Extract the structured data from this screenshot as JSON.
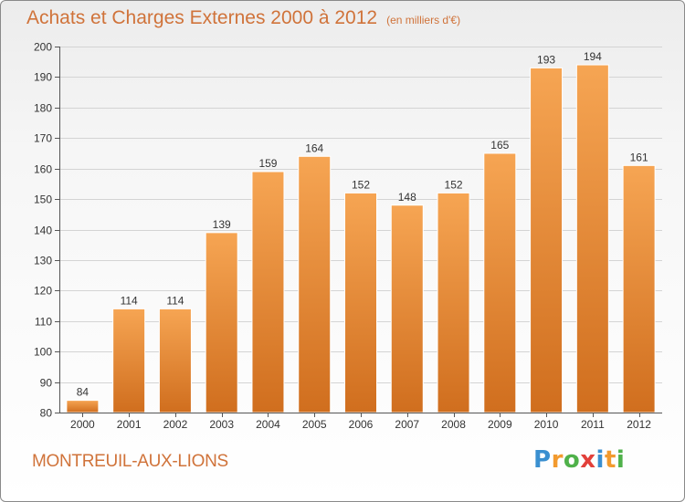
{
  "header": {
    "title": "Achats et Charges Externes 2000 à 2012",
    "unit": "(en milliers d'€)"
  },
  "footer": {
    "commune": "MONTREUIL-AUX-LIONS",
    "logo_letters": [
      "P",
      "r",
      "o",
      "x",
      "i",
      "t",
      "i"
    ]
  },
  "colors": {
    "accent": "#d0733a",
    "bar_light": "#f6a553",
    "bar_dark": "#d06e1e",
    "logo": [
      "#3a8fd0",
      "#f29a2e",
      "#4fb14a",
      "#e2403a",
      "#3a8fd0",
      "#f29a2e",
      "#4fb14a"
    ]
  },
  "chart_data": {
    "type": "bar",
    "title": "Achats et Charges Externes 2000 à 2012",
    "subtitle": "(en milliers d'€)",
    "categories": [
      "2000",
      "2001",
      "2002",
      "2003",
      "2004",
      "2005",
      "2006",
      "2007",
      "2008",
      "2009",
      "2010",
      "2011",
      "2012"
    ],
    "values": [
      84,
      114,
      114,
      139,
      159,
      164,
      152,
      148,
      152,
      165,
      193,
      194,
      161
    ],
    "ylim": [
      80,
      200
    ],
    "yticks": [
      80,
      90,
      100,
      110,
      120,
      130,
      140,
      150,
      160,
      170,
      180,
      190,
      200
    ],
    "grid": true,
    "data_labels": true
  }
}
